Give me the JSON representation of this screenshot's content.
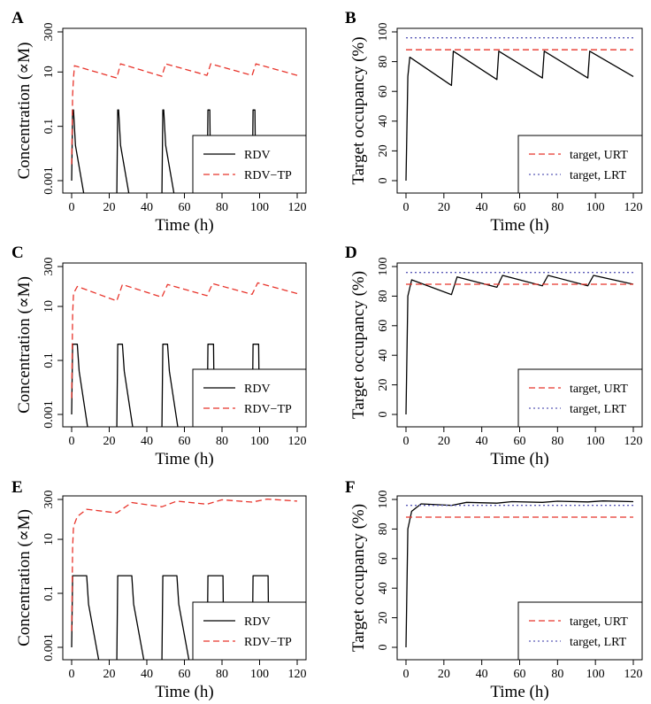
{
  "chart_data": [
    {
      "panel": "A",
      "type": "line",
      "xlabel": "Time (h)",
      "ylabel": "Concentration (∝M)",
      "xlim": [
        0,
        120
      ],
      "ylim": [
        0.001,
        300
      ],
      "yscale": "log",
      "xticks": [
        "0",
        "20",
        "40",
        "60",
        "80",
        "100",
        "120"
      ],
      "yticks": [
        "0.001",
        "0.1",
        "10",
        "300"
      ],
      "legend": {
        "placement": "bottom-right",
        "entries": [
          "RDV",
          "RDV−TP"
        ]
      },
      "series": [
        {
          "name": "RDV",
          "style": "solid",
          "color": "#000000",
          "x": [
            0,
            0.5,
            1,
            2,
            7,
            24,
            24.5,
            25,
            26,
            31,
            48,
            48.5,
            49,
            50,
            55,
            72,
            72.5,
            73,
            73.5,
            74,
            96,
            96.5,
            97,
            97.5,
            98
          ],
          "y": [
            0.001,
            0.4,
            0.4,
            0.02,
            0.0002,
            0.0002,
            0.4,
            0.4,
            0.02,
            0.0002,
            0.0002,
            0.4,
            0.4,
            0.02,
            0.0002,
            0.0002,
            0.4,
            0.4,
            0.4,
            0.0002,
            0.0002,
            0.4,
            0.4,
            0.4,
            0.0002
          ]
        },
        {
          "name": "RDV−TP",
          "style": "dashed",
          "color": "#e8342b",
          "x": [
            0,
            0.5,
            1,
            1.5,
            24,
            26,
            48,
            50,
            72,
            74,
            96,
            98,
            120
          ],
          "y": [
            0.004,
            1.5,
            6,
            17,
            6,
            20,
            7,
            20,
            7.5,
            20,
            7.5,
            20,
            7.5
          ]
        }
      ]
    },
    {
      "panel": "B",
      "type": "line",
      "xlabel": "Time (h)",
      "ylabel": "Target occupancy (%)",
      "xlim": [
        0,
        120
      ],
      "ylim": [
        0,
        100
      ],
      "xticks": [
        "0",
        "20",
        "40",
        "60",
        "80",
        "100",
        "120"
      ],
      "yticks": [
        "0",
        "20",
        "40",
        "60",
        "80",
        "100"
      ],
      "legend": {
        "placement": "bottom-right",
        "entries": [
          "target, URT",
          "target, LRT"
        ]
      },
      "series": [
        {
          "name": "occupancy",
          "style": "solid",
          "color": "#000000",
          "x": [
            0,
            1,
            2,
            24,
            25,
            48,
            49,
            72,
            73,
            96,
            97,
            120
          ],
          "y": [
            0,
            70,
            83,
            64,
            87,
            68,
            87,
            69,
            87,
            69,
            87,
            70
          ]
        },
        {
          "name": "target, URT",
          "style": "dashed",
          "color": "#e8342b",
          "x": [
            0,
            120
          ],
          "y": [
            88,
            88
          ]
        },
        {
          "name": "target, LRT",
          "style": "dotted",
          "color": "#5b5bb8",
          "x": [
            0,
            120
          ],
          "y": [
            96,
            96
          ]
        }
      ]
    },
    {
      "panel": "C",
      "type": "line",
      "xlabel": "Time (h)",
      "ylabel": "Concentration (∝M)",
      "xlim": [
        0,
        120
      ],
      "ylim": [
        0.001,
        300
      ],
      "yscale": "log",
      "xticks": [
        "0",
        "20",
        "40",
        "60",
        "80",
        "100",
        "120"
      ],
      "yticks": [
        "0.001",
        "0.1",
        "10",
        "300"
      ],
      "legend": {
        "placement": "bottom-right",
        "entries": [
          "RDV",
          "RDV−TP"
        ]
      },
      "series": [
        {
          "name": "RDV",
          "style": "solid",
          "color": "#000000",
          "x": [
            0,
            0.5,
            3,
            4,
            9,
            24,
            24.5,
            27,
            28,
            33,
            48,
            48.5,
            51,
            52,
            57,
            72,
            72.5,
            75,
            75.5,
            76,
            96,
            96.5,
            99,
            99.5,
            100
          ],
          "y": [
            0.001,
            0.4,
            0.4,
            0.04,
            0.0002,
            0.0002,
            0.4,
            0.4,
            0.04,
            0.0002,
            0.0002,
            0.4,
            0.4,
            0.04,
            0.0002,
            0.0002,
            0.4,
            0.4,
            0.4,
            0.0002,
            0.0002,
            0.4,
            0.4,
            0.4,
            0.0002
          ]
        },
        {
          "name": "RDV−TP",
          "style": "dashed",
          "color": "#e8342b",
          "x": [
            0,
            0.5,
            1,
            3,
            24,
            27,
            48,
            51,
            72,
            75,
            96,
            99,
            120
          ],
          "y": [
            0.004,
            5,
            30,
            55,
            16,
            65,
            22,
            65,
            25,
            70,
            28,
            75,
            30
          ]
        }
      ]
    },
    {
      "panel": "D",
      "type": "line",
      "xlabel": "Time (h)",
      "ylabel": "Target occupancy (%)",
      "xlim": [
        0,
        120
      ],
      "ylim": [
        0,
        100
      ],
      "xticks": [
        "0",
        "20",
        "40",
        "60",
        "80",
        "100",
        "120"
      ],
      "yticks": [
        "0",
        "20",
        "40",
        "60",
        "80",
        "100"
      ],
      "legend": {
        "placement": "bottom-right",
        "entries": [
          "target, URT",
          "target, LRT"
        ]
      },
      "series": [
        {
          "name": "occupancy",
          "style": "solid",
          "color": "#000000",
          "x": [
            0,
            1,
            3,
            24,
            27,
            48,
            51,
            72,
            75,
            96,
            99,
            120
          ],
          "y": [
            0,
            80,
            91,
            81,
            93,
            86,
            94,
            87,
            94,
            87,
            94,
            88
          ]
        },
        {
          "name": "target, URT",
          "style": "dashed",
          "color": "#e8342b",
          "x": [
            0,
            120
          ],
          "y": [
            88,
            88
          ]
        },
        {
          "name": "target, LRT",
          "style": "dotted",
          "color": "#5b5bb8",
          "x": [
            0,
            120
          ],
          "y": [
            96,
            96
          ]
        }
      ]
    },
    {
      "panel": "E",
      "type": "line",
      "xlabel": "Time (h)",
      "ylabel": "Concentration (∝M)",
      "xlim": [
        0,
        120
      ],
      "ylim": [
        0.001,
        300
      ],
      "yscale": "log",
      "xticks": [
        "0",
        "20",
        "40",
        "60",
        "80",
        "100",
        "120"
      ],
      "yticks": [
        "0.001",
        "0.1",
        "10",
        "300"
      ],
      "legend": {
        "placement": "bottom-right",
        "entries": [
          "RDV",
          "RDV−TP"
        ]
      },
      "series": [
        {
          "name": "RDV",
          "style": "solid",
          "color": "#000000",
          "x": [
            0,
            0.5,
            8,
            9,
            15,
            24,
            24.5,
            32,
            33,
            39,
            48,
            48.5,
            56,
            57,
            63,
            72,
            72.5,
            80,
            80.5,
            81,
            96,
            96.5,
            104,
            104.5,
            105
          ],
          "y": [
            0.001,
            0.45,
            0.45,
            0.04,
            0.0002,
            0.0002,
            0.45,
            0.45,
            0.04,
            0.0002,
            0.0002,
            0.45,
            0.45,
            0.04,
            0.0002,
            0.0002,
            0.45,
            0.45,
            0.45,
            0.0002,
            0.0002,
            0.45,
            0.45,
            0.45,
            0.0002
          ]
        },
        {
          "name": "RDV−TP",
          "style": "dashed",
          "color": "#e8342b",
          "x": [
            0,
            0.5,
            1,
            3,
            8,
            24,
            32,
            48,
            56,
            72,
            80,
            96,
            104,
            120
          ],
          "y": [
            0.004,
            5,
            30,
            70,
            130,
            95,
            230,
            160,
            260,
            200,
            290,
            240,
            310,
            260
          ]
        }
      ]
    },
    {
      "panel": "F",
      "type": "line",
      "xlabel": "Time (h)",
      "ylabel": "Target occupancy (%)",
      "xlim": [
        0,
        120
      ],
      "ylim": [
        0,
        100
      ],
      "xticks": [
        "0",
        "20",
        "40",
        "60",
        "80",
        "100",
        "120"
      ],
      "yticks": [
        "0",
        "20",
        "40",
        "60",
        "80",
        "100"
      ],
      "legend": {
        "placement": "bottom-right",
        "entries": [
          "target, URT",
          "target, LRT"
        ]
      },
      "series": [
        {
          "name": "occupancy",
          "style": "solid",
          "color": "#000000",
          "x": [
            0,
            1,
            3,
            8,
            24,
            32,
            48,
            56,
            72,
            80,
            96,
            104,
            120
          ],
          "y": [
            0,
            80,
            92,
            97,
            96,
            98,
            97.5,
            98.5,
            98,
            98.8,
            98.3,
            99,
            98.5
          ]
        },
        {
          "name": "target, URT",
          "style": "dashed",
          "color": "#e8342b",
          "x": [
            0,
            120
          ],
          "y": [
            88,
            88
          ]
        },
        {
          "name": "target, LRT",
          "style": "dotted",
          "color": "#5b5bb8",
          "x": [
            0,
            120
          ],
          "y": [
            96,
            96
          ]
        }
      ]
    }
  ]
}
